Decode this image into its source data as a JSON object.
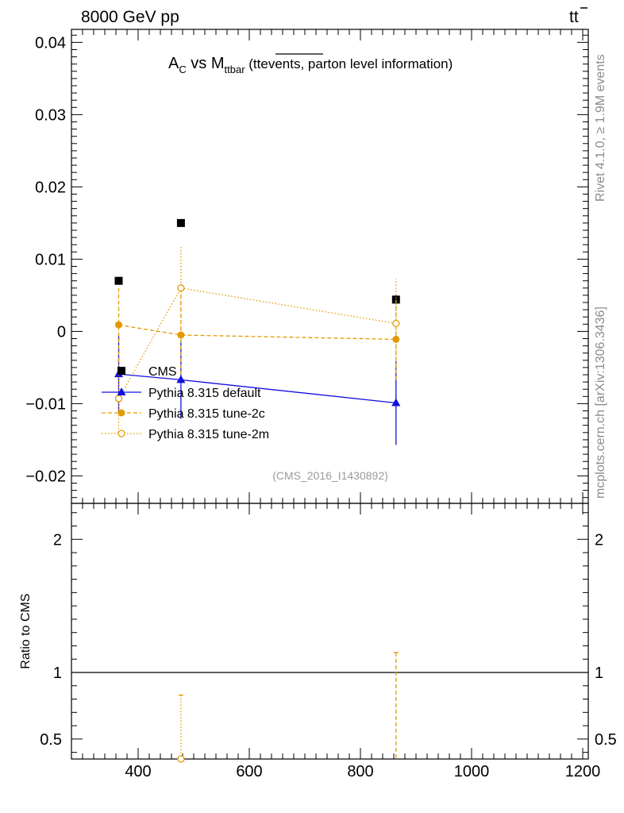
{
  "header": {
    "energy": "8000 GeV pp",
    "process_main": "tt",
    "process_bar": "t"
  },
  "side": {
    "rivet": "Rivet 4.1.0, ≥ 1.9M events",
    "mcplots": "mcplots.cern.ch [arXiv:1306.3436]"
  },
  "chart_data": {
    "type": "scatter",
    "title": "A_C vs M_ttbar (tt events, parton level information)",
    "title_parts": {
      "a": "A",
      "a_sub": "C",
      "vs": " vs M",
      "m_sub": "ttbar",
      "open": " (tt",
      "overline": "events,",
      "rest": " parton level information)"
    },
    "analysis_id": "(CMS_2016_I1430892)",
    "xlim": [
      280,
      1210
    ],
    "xticks": [
      400,
      600,
      800,
      1000,
      1200
    ],
    "main": {
      "ylim": [
        -0.0238,
        0.0418
      ],
      "yticks": [
        -0.02,
        -0.01,
        0,
        0.01,
        0.02,
        0.03,
        0.04
      ],
      "ytick_labels": [
        "−0.02",
        "−0.01",
        "0",
        "0.01",
        "0.02",
        "0.03",
        "0.04"
      ]
    },
    "ratio": {
      "ylabel": "Ratio to CMS",
      "ylim": [
        0.35,
        2.27
      ],
      "yticks": [
        0.5,
        1,
        2
      ],
      "ytick_labels": [
        "0.5",
        "1",
        "2"
      ],
      "reference": 1
    },
    "series": [
      {
        "name": "CMS",
        "color": "#000000",
        "marker": "square",
        "x": [
          365,
          477,
          864
        ],
        "y": [
          0.007,
          0.015,
          0.0044
        ],
        "yerr": [
          0.0002,
          0.0002,
          0.0006
        ],
        "ratio_x": [],
        "ratio_y": []
      },
      {
        "name": "Pythia 8.315 default",
        "color": "#1010e0",
        "marker": "triangle",
        "line": "solid",
        "x": [
          365,
          477,
          864
        ],
        "y": [
          -0.0059,
          -0.0067,
          -0.0099
        ],
        "yerr": [
          0.0053,
          0.0054,
          0.0058
        ],
        "ratio_x": [],
        "ratio_y": []
      },
      {
        "name": "Pythia 8.315 tune-2c",
        "color": "#e29a00",
        "marker": "circle",
        "line": "dashed",
        "x": [
          365,
          477,
          864
        ],
        "y": [
          0.0009,
          -0.0005,
          -0.0011
        ],
        "yerr": [
          0.0051,
          0.0055,
          0.0056
        ],
        "ratio_x": [
          864
        ],
        "ratio_y": [
          -0.25
        ],
        "ratio_err": [
          1.4
        ]
      },
      {
        "name": "Pythia 8.315 tune-2m",
        "color": "#e29a00",
        "marker": "open-circle",
        "line": "dotted",
        "x": [
          365,
          477,
          864
        ],
        "y": [
          -0.0093,
          0.006,
          0.0011
        ],
        "yerr": [
          0.0051,
          0.0059,
          0.0062
        ],
        "ratio_x": [
          477
        ],
        "ratio_y": [
          0.4
        ],
        "ratio_err": [
          0.43
        ]
      }
    ]
  }
}
